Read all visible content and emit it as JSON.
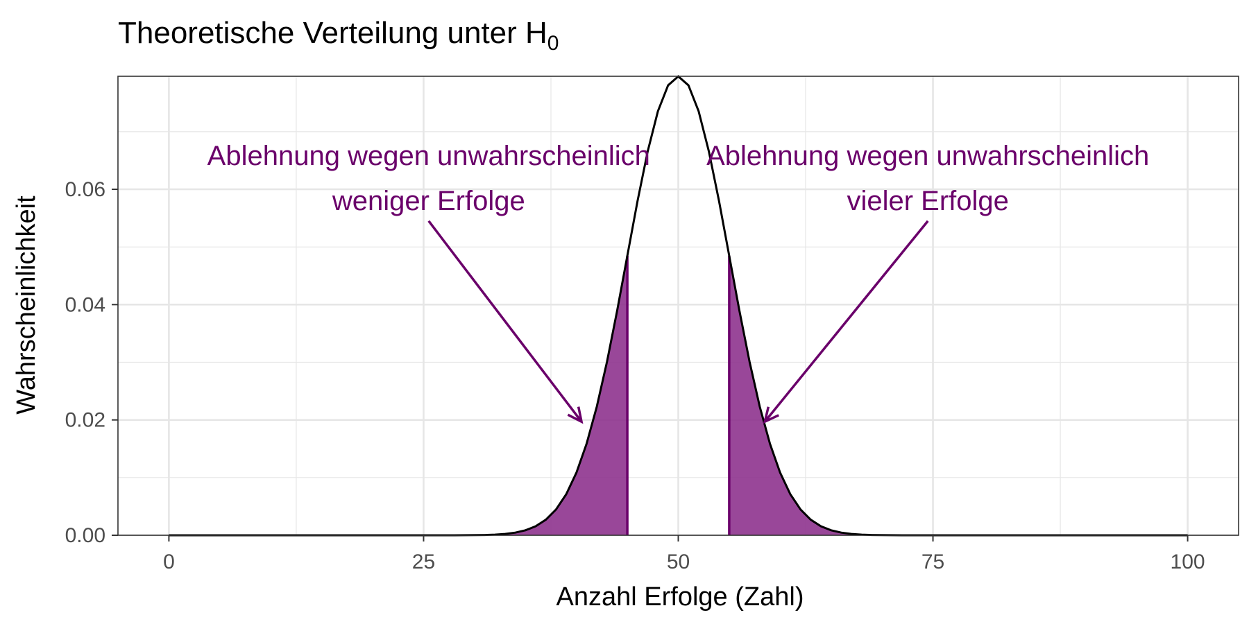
{
  "chart_data": {
    "type": "area",
    "title": "Theoretische Verteilung unter H",
    "title_subscript": "0",
    "xlabel": "Anzahl Erfolge (Zahl)",
    "ylabel": "Wahrscheinlichkeit",
    "xlim": [
      -5,
      105
    ],
    "ylim": [
      0,
      0.0796
    ],
    "x_ticks": [
      0,
      25,
      50,
      75,
      100
    ],
    "x_tick_labels": [
      "0",
      "25",
      "50",
      "75",
      "100"
    ],
    "y_ticks": [
      0,
      0.02,
      0.04,
      0.06
    ],
    "y_tick_labels": [
      "0.00",
      "0.02",
      "0.04",
      "0.06"
    ],
    "grid": true,
    "distribution": {
      "name": "Binomial",
      "n": 100,
      "p": 0.5,
      "x_min": 0,
      "x_max": 100
    },
    "rejection_regions": [
      {
        "from": 0,
        "to": 45
      },
      {
        "from": 55,
        "to": 100
      }
    ],
    "colors": {
      "accent": "#6a006a",
      "fill": "#8b2e8b",
      "curve": "#000000",
      "grid": "#e6e6e6"
    },
    "annotations": [
      {
        "lines": [
          "Ablehnung wegen unwahrscheinlich",
          "weniger Erfolge"
        ],
        "arrow_from": [
          25.5,
          0.0545
        ],
        "arrow_to": [
          40.5,
          0.0197
        ]
      },
      {
        "lines": [
          "Ablehnung wegen unwahrscheinlich",
          "vieler Erfolge"
        ],
        "arrow_from": [
          74.5,
          0.0545
        ],
        "arrow_to": [
          58.5,
          0.0197
        ]
      }
    ]
  }
}
